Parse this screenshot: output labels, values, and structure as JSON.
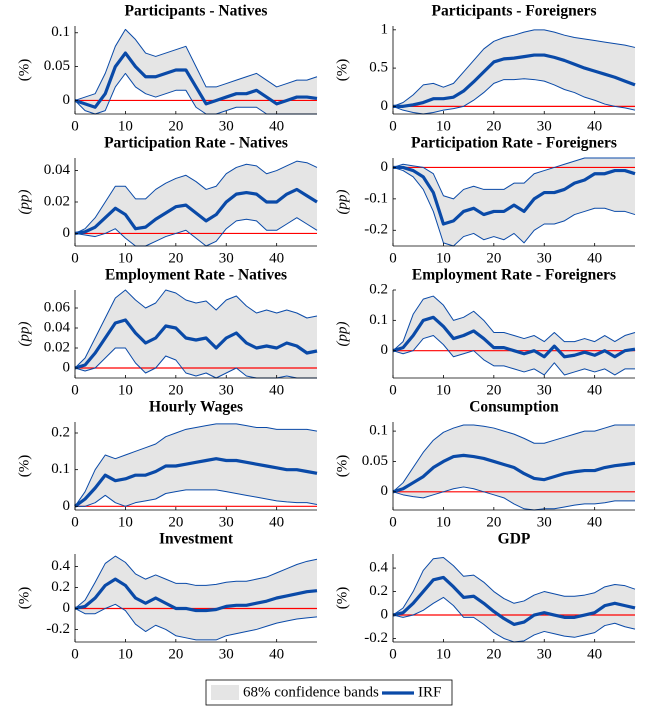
{
  "legend": [
    {
      "label": "68% confidence bands",
      "color": "#e5e5e5"
    },
    {
      "label": "IRF",
      "color": "#0a4aa8"
    }
  ],
  "zero_line_color": "#ff0000",
  "chart_data": [
    {
      "type": "line",
      "title": "Participants - Natives",
      "ylabel": "(%)",
      "x": [
        0,
        2,
        4,
        6,
        8,
        10,
        12,
        14,
        16,
        18,
        20,
        22,
        24,
        26,
        28,
        30,
        32,
        34,
        36,
        38,
        40,
        42,
        44,
        46,
        48
      ],
      "xlim": [
        0,
        48
      ],
      "xticks": [
        0,
        10,
        20,
        30,
        40
      ],
      "ylim": [
        -0.02,
        0.11
      ],
      "yticks": [
        0,
        0.05,
        0.1
      ],
      "irf": [
        0,
        -0.005,
        -0.01,
        0.01,
        0.05,
        0.07,
        0.05,
        0.035,
        0.035,
        0.04,
        0.045,
        0.045,
        0.02,
        -0.005,
        0,
        0.005,
        0.01,
        0.01,
        0.015,
        0.005,
        -0.005,
        0,
        0.005,
        0.005,
        0.003
      ],
      "upper": [
        0,
        0.005,
        0.01,
        0.04,
        0.08,
        0.105,
        0.09,
        0.07,
        0.065,
        0.07,
        0.075,
        0.08,
        0.05,
        0.02,
        0.02,
        0.025,
        0.03,
        0.035,
        0.04,
        0.03,
        0.02,
        0.025,
        0.03,
        0.03,
        0.035
      ],
      "lower": [
        0,
        -0.015,
        -0.02,
        -0.015,
        0.02,
        0.04,
        0.02,
        0.01,
        0.005,
        0.01,
        0.015,
        0.015,
        -0.01,
        -0.02,
        -0.02,
        -0.015,
        -0.01,
        -0.01,
        -0.01,
        -0.02,
        -0.02,
        -0.02,
        -0.02,
        -0.02,
        -0.02
      ]
    },
    {
      "type": "line",
      "title": "Participants - Foreigners",
      "ylabel": "(%)",
      "x": [
        0,
        2,
        4,
        6,
        8,
        10,
        12,
        14,
        16,
        18,
        20,
        22,
        24,
        26,
        28,
        30,
        32,
        34,
        36,
        38,
        40,
        42,
        44,
        46,
        48
      ],
      "xlim": [
        0,
        48
      ],
      "xticks": [
        0,
        10,
        20,
        30,
        40
      ],
      "ylim": [
        -0.1,
        1.05
      ],
      "yticks": [
        0,
        0.5,
        1
      ],
      "irf": [
        0,
        0,
        0.02,
        0.05,
        0.1,
        0.1,
        0.12,
        0.2,
        0.32,
        0.45,
        0.58,
        0.62,
        0.63,
        0.65,
        0.67,
        0.67,
        0.64,
        0.6,
        0.55,
        0.5,
        0.46,
        0.42,
        0.38,
        0.33,
        0.28
      ],
      "upper": [
        0,
        0.05,
        0.15,
        0.28,
        0.3,
        0.25,
        0.3,
        0.45,
        0.6,
        0.75,
        0.85,
        0.9,
        0.93,
        0.97,
        1.0,
        1.0,
        0.97,
        0.93,
        0.9,
        0.88,
        0.86,
        0.84,
        0.82,
        0.8,
        0.77
      ],
      "lower": [
        0,
        -0.05,
        -0.08,
        -0.1,
        -0.08,
        -0.05,
        -0.03,
        0,
        0.08,
        0.18,
        0.3,
        0.35,
        0.35,
        0.36,
        0.35,
        0.33,
        0.28,
        0.22,
        0.18,
        0.12,
        0.08,
        0.03,
        0,
        -0.02,
        -0.05
      ]
    },
    {
      "type": "line",
      "title": "Participation Rate - Natives",
      "ylabel": "(pp)",
      "x": [
        0,
        2,
        4,
        6,
        8,
        10,
        12,
        14,
        16,
        18,
        20,
        22,
        24,
        26,
        28,
        30,
        32,
        34,
        36,
        38,
        40,
        42,
        44,
        46,
        48
      ],
      "xlim": [
        0,
        48
      ],
      "xticks": [
        0,
        10,
        20,
        30,
        40
      ],
      "ylim": [
        -0.008,
        0.048
      ],
      "yticks": [
        0,
        0.02,
        0.04
      ],
      "irf": [
        0,
        0.001,
        0.004,
        0.01,
        0.016,
        0.012,
        0.003,
        0.004,
        0.009,
        0.013,
        0.017,
        0.018,
        0.013,
        0.008,
        0.012,
        0.02,
        0.025,
        0.026,
        0.025,
        0.02,
        0.02,
        0.025,
        0.028,
        0.024,
        0.02
      ],
      "upper": [
        0,
        0.003,
        0.01,
        0.02,
        0.03,
        0.03,
        0.022,
        0.022,
        0.028,
        0.032,
        0.035,
        0.037,
        0.033,
        0.028,
        0.03,
        0.038,
        0.042,
        0.044,
        0.043,
        0.038,
        0.04,
        0.043,
        0.046,
        0.045,
        0.042
      ],
      "lower": [
        0,
        -0.001,
        -0.002,
        0,
        0.003,
        -0.003,
        -0.008,
        -0.008,
        -0.005,
        -0.002,
        0,
        0.002,
        -0.003,
        -0.008,
        -0.005,
        0.003,
        0.008,
        0.009,
        0.008,
        0.002,
        0.002,
        0.006,
        0.01,
        0.006,
        0.002
      ]
    },
    {
      "type": "line",
      "title": "Participation Rate - Foreigners",
      "ylabel": "(pp)",
      "x": [
        0,
        2,
        4,
        6,
        8,
        10,
        12,
        14,
        16,
        18,
        20,
        22,
        24,
        26,
        28,
        30,
        32,
        34,
        36,
        38,
        40,
        42,
        44,
        46,
        48
      ],
      "xlim": [
        0,
        48
      ],
      "xticks": [
        0,
        10,
        20,
        30,
        40
      ],
      "ylim": [
        -0.25,
        0.03
      ],
      "yticks": [
        -0.2,
        -0.1,
        0
      ],
      "irf": [
        0,
        0,
        -0.01,
        -0.03,
        -0.08,
        -0.18,
        -0.17,
        -0.14,
        -0.13,
        -0.15,
        -0.14,
        -0.14,
        -0.12,
        -0.14,
        -0.1,
        -0.08,
        -0.08,
        -0.07,
        -0.05,
        -0.04,
        -0.02,
        -0.02,
        -0.01,
        -0.01,
        -0.02
      ],
      "upper": [
        0,
        0.01,
        0.005,
        0,
        -0.02,
        -0.09,
        -0.1,
        -0.07,
        -0.06,
        -0.07,
        -0.07,
        -0.07,
        -0.05,
        -0.05,
        -0.02,
        -0.01,
        0,
        0.01,
        0.02,
        0.03,
        0.03,
        0.03,
        0.03,
        0.03,
        0.03
      ],
      "lower": [
        0,
        -0.01,
        -0.03,
        -0.07,
        -0.14,
        -0.24,
        -0.25,
        -0.22,
        -0.21,
        -0.23,
        -0.22,
        -0.23,
        -0.21,
        -0.24,
        -0.2,
        -0.18,
        -0.18,
        -0.17,
        -0.15,
        -0.14,
        -0.13,
        -0.13,
        -0.14,
        -0.14,
        -0.15
      ]
    },
    {
      "type": "line",
      "title": "Employment Rate - Natives",
      "ylabel": "(pp)",
      "x": [
        0,
        2,
        4,
        6,
        8,
        10,
        12,
        14,
        16,
        18,
        20,
        22,
        24,
        26,
        28,
        30,
        32,
        34,
        36,
        38,
        40,
        42,
        44,
        46,
        48
      ],
      "xlim": [
        0,
        48
      ],
      "xticks": [
        0,
        10,
        20,
        30,
        40
      ],
      "ylim": [
        -0.01,
        0.078
      ],
      "yticks": [
        0,
        0.02,
        0.04,
        0.06
      ],
      "irf": [
        0,
        0.003,
        0.015,
        0.03,
        0.045,
        0.048,
        0.035,
        0.025,
        0.03,
        0.042,
        0.04,
        0.03,
        0.028,
        0.03,
        0.02,
        0.03,
        0.035,
        0.025,
        0.02,
        0.022,
        0.02,
        0.025,
        0.022,
        0.015,
        0.017
      ],
      "upper": [
        0,
        0.01,
        0.03,
        0.05,
        0.07,
        0.078,
        0.068,
        0.06,
        0.065,
        0.078,
        0.075,
        0.068,
        0.065,
        0.067,
        0.058,
        0.068,
        0.072,
        0.062,
        0.055,
        0.058,
        0.055,
        0.058,
        0.055,
        0.05,
        0.052
      ],
      "lower": [
        0,
        -0.003,
        0,
        0.01,
        0.02,
        0.02,
        0.005,
        -0.005,
        0,
        0.012,
        0.008,
        -0.005,
        -0.008,
        -0.005,
        -0.01,
        -0.005,
        0,
        -0.008,
        -0.01,
        -0.01,
        -0.01,
        -0.008,
        -0.01,
        -0.01,
        -0.01
      ]
    },
    {
      "type": "line",
      "title": "Employment Rate - Foreigners",
      "ylabel": "(pp)",
      "x": [
        0,
        2,
        4,
        6,
        8,
        10,
        12,
        14,
        16,
        18,
        20,
        22,
        24,
        26,
        28,
        30,
        32,
        34,
        36,
        38,
        40,
        42,
        44,
        46,
        48
      ],
      "xlim": [
        0,
        48
      ],
      "xticks": [
        0,
        10,
        20,
        30,
        40
      ],
      "ylim": [
        -0.09,
        0.2
      ],
      "yticks": [
        0,
        0.1,
        0.2
      ],
      "irf": [
        0,
        0.01,
        0.05,
        0.1,
        0.11,
        0.08,
        0.04,
        0.05,
        0.065,
        0.04,
        0.01,
        0.01,
        0,
        -0.01,
        0,
        -0.02,
        0.015,
        -0.02,
        -0.015,
        -0.005,
        -0.015,
        0,
        -0.02,
        0,
        0.005
      ],
      "upper": [
        0,
        0.03,
        0.12,
        0.17,
        0.18,
        0.15,
        0.1,
        0.11,
        0.13,
        0.1,
        0.06,
        0.06,
        0.05,
        0.04,
        0.05,
        0.03,
        0.06,
        0.03,
        0.03,
        0.04,
        0.03,
        0.05,
        0.03,
        0.05,
        0.06
      ],
      "lower": [
        0,
        -0.01,
        0,
        0.04,
        0.05,
        0.02,
        -0.02,
        -0.01,
        0,
        -0.03,
        -0.05,
        -0.05,
        -0.06,
        -0.07,
        -0.06,
        -0.08,
        -0.04,
        -0.08,
        -0.07,
        -0.06,
        -0.07,
        -0.06,
        -0.08,
        -0.06,
        -0.06
      ]
    },
    {
      "type": "line",
      "title": "Hourly Wages",
      "ylabel": "(%)",
      "x": [
        0,
        2,
        4,
        6,
        8,
        10,
        12,
        14,
        16,
        18,
        20,
        22,
        24,
        26,
        28,
        30,
        32,
        34,
        36,
        38,
        40,
        42,
        44,
        46,
        48
      ],
      "xlim": [
        0,
        48
      ],
      "xticks": [
        0,
        10,
        20,
        30,
        40
      ],
      "ylim": [
        -0.01,
        0.23
      ],
      "yticks": [
        0,
        0.1,
        0.2
      ],
      "irf": [
        0,
        0.02,
        0.05,
        0.085,
        0.07,
        0.075,
        0.085,
        0.085,
        0.095,
        0.11,
        0.11,
        0.115,
        0.12,
        0.125,
        0.13,
        0.125,
        0.125,
        0.12,
        0.115,
        0.11,
        0.105,
        0.1,
        0.1,
        0.095,
        0.09
      ],
      "upper": [
        0,
        0.04,
        0.1,
        0.14,
        0.13,
        0.14,
        0.15,
        0.16,
        0.17,
        0.19,
        0.2,
        0.21,
        0.215,
        0.22,
        0.225,
        0.225,
        0.225,
        0.22,
        0.215,
        0.215,
        0.21,
        0.21,
        0.21,
        0.21,
        0.205
      ],
      "lower": [
        0,
        0,
        0.01,
        0.03,
        0.01,
        0,
        0.01,
        0.015,
        0.02,
        0.035,
        0.04,
        0.045,
        0.045,
        0.045,
        0.045,
        0.04,
        0.035,
        0.03,
        0.025,
        0.02,
        0.015,
        0.012,
        0.01,
        0.01,
        0.005
      ]
    },
    {
      "type": "line",
      "title": "Consumption",
      "ylabel": "(%)",
      "x": [
        0,
        2,
        4,
        6,
        8,
        10,
        12,
        14,
        16,
        18,
        20,
        22,
        24,
        26,
        28,
        30,
        32,
        34,
        36,
        38,
        40,
        42,
        44,
        46,
        48
      ],
      "xlim": [
        0,
        48
      ],
      "xticks": [
        0,
        10,
        20,
        30,
        40
      ],
      "ylim": [
        -0.03,
        0.115
      ],
      "yticks": [
        0,
        0.05,
        0.1
      ],
      "irf": [
        0,
        0.005,
        0.015,
        0.025,
        0.04,
        0.05,
        0.058,
        0.06,
        0.058,
        0.055,
        0.05,
        0.045,
        0.04,
        0.03,
        0.022,
        0.02,
        0.025,
        0.03,
        0.033,
        0.035,
        0.035,
        0.04,
        0.043,
        0.045,
        0.047
      ],
      "upper": [
        0,
        0.015,
        0.04,
        0.065,
        0.085,
        0.098,
        0.105,
        0.11,
        0.11,
        0.108,
        0.105,
        0.1,
        0.095,
        0.088,
        0.08,
        0.08,
        0.085,
        0.09,
        0.095,
        0.1,
        0.1,
        0.105,
        0.11,
        0.11,
        0.11
      ],
      "lower": [
        0,
        -0.005,
        -0.008,
        -0.01,
        -0.005,
        0,
        0.005,
        0.008,
        0.005,
        0,
        -0.005,
        -0.01,
        -0.02,
        -0.028,
        -0.03,
        -0.028,
        -0.028,
        -0.025,
        -0.022,
        -0.02,
        -0.02,
        -0.018,
        -0.015,
        -0.015,
        -0.015
      ]
    },
    {
      "type": "line",
      "title": "Investment",
      "ylabel": "(%)",
      "x": [
        0,
        2,
        4,
        6,
        8,
        10,
        12,
        14,
        16,
        18,
        20,
        22,
        24,
        26,
        28,
        30,
        32,
        34,
        36,
        38,
        40,
        42,
        44,
        46,
        48
      ],
      "xlim": [
        0,
        48
      ],
      "xticks": [
        0,
        10,
        20,
        30,
        40
      ],
      "ylim": [
        -0.32,
        0.52
      ],
      "yticks": [
        -0.2,
        0,
        0.2,
        0.4
      ],
      "irf": [
        0,
        0.02,
        0.1,
        0.22,
        0.28,
        0.22,
        0.1,
        0.05,
        0.1,
        0.05,
        0,
        0,
        -0.02,
        -0.02,
        -0.01,
        0.02,
        0.03,
        0.03,
        0.05,
        0.07,
        0.1,
        0.12,
        0.14,
        0.16,
        0.17
      ],
      "upper": [
        0,
        0.08,
        0.25,
        0.43,
        0.5,
        0.44,
        0.33,
        0.28,
        0.32,
        0.28,
        0.24,
        0.24,
        0.22,
        0.22,
        0.23,
        0.25,
        0.26,
        0.26,
        0.28,
        0.3,
        0.34,
        0.38,
        0.42,
        0.45,
        0.47
      ],
      "lower": [
        0,
        -0.05,
        -0.05,
        0,
        0.04,
        -0.02,
        -0.15,
        -0.22,
        -0.16,
        -0.2,
        -0.26,
        -0.28,
        -0.3,
        -0.3,
        -0.3,
        -0.26,
        -0.24,
        -0.22,
        -0.2,
        -0.17,
        -0.14,
        -0.12,
        -0.1,
        -0.09,
        -0.08
      ]
    },
    {
      "type": "line",
      "title": "GDP",
      "ylabel": "(%)",
      "x": [
        0,
        2,
        4,
        6,
        8,
        10,
        12,
        14,
        16,
        18,
        20,
        22,
        24,
        26,
        28,
        30,
        32,
        34,
        36,
        38,
        40,
        42,
        44,
        46,
        48
      ],
      "xlim": [
        0,
        48
      ],
      "xticks": [
        0,
        10,
        20,
        30,
        40
      ],
      "ylim": [
        -0.23,
        0.52
      ],
      "yticks": [
        -0.2,
        0,
        0.2,
        0.4
      ],
      "irf": [
        0,
        0.02,
        0.1,
        0.2,
        0.3,
        0.32,
        0.24,
        0.15,
        0.16,
        0.1,
        0.03,
        -0.03,
        -0.08,
        -0.06,
        0,
        0.02,
        0,
        -0.02,
        -0.02,
        0,
        0.02,
        0.08,
        0.1,
        0.08,
        0.06
      ],
      "upper": [
        0,
        0.06,
        0.2,
        0.38,
        0.48,
        0.49,
        0.42,
        0.33,
        0.34,
        0.28,
        0.2,
        0.14,
        0.1,
        0.12,
        0.17,
        0.2,
        0.18,
        0.16,
        0.16,
        0.17,
        0.19,
        0.24,
        0.26,
        0.25,
        0.22
      ],
      "lower": [
        0,
        -0.02,
        0,
        0.04,
        0.1,
        0.15,
        0.08,
        -0.02,
        -0.02,
        -0.08,
        -0.15,
        -0.2,
        -0.23,
        -0.22,
        -0.17,
        -0.14,
        -0.16,
        -0.18,
        -0.19,
        -0.17,
        -0.15,
        -0.09,
        -0.07,
        -0.1,
        -0.12
      ]
    }
  ]
}
